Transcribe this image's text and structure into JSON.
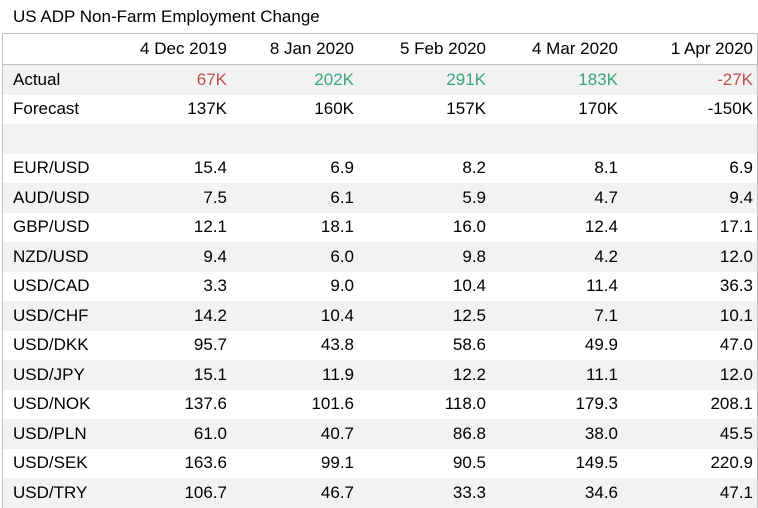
{
  "title": "US ADP Non-Farm Employment Change",
  "columns": [
    "4 Dec 2019",
    "8 Jan 2020",
    "5 Feb 2020",
    "4 Mar 2020",
    "1 Apr 2020"
  ],
  "actual": {
    "label": "Actual",
    "values": [
      "67K",
      "202K",
      "291K",
      "183K",
      "-27K"
    ],
    "status": [
      "negative",
      "positive",
      "positive",
      "positive",
      "negative"
    ]
  },
  "forecast": {
    "label": "Forecast",
    "values": [
      "137K",
      "160K",
      "157K",
      "170K",
      "-150K"
    ]
  },
  "pairs": [
    {
      "label": "EUR/USD",
      "values": [
        "15.4",
        "6.9",
        "8.2",
        "8.1",
        "6.9"
      ]
    },
    {
      "label": "AUD/USD",
      "values": [
        "7.5",
        "6.1",
        "5.9",
        "4.7",
        "9.4"
      ]
    },
    {
      "label": "GBP/USD",
      "values": [
        "12.1",
        "18.1",
        "16.0",
        "12.4",
        "17.1"
      ]
    },
    {
      "label": "NZD/USD",
      "values": [
        "9.4",
        "6.0",
        "9.8",
        "4.2",
        "12.0"
      ]
    },
    {
      "label": "USD/CAD",
      "values": [
        "3.3",
        "9.0",
        "10.4",
        "11.4",
        "36.3"
      ]
    },
    {
      "label": "USD/CHF",
      "values": [
        "14.2",
        "10.4",
        "12.5",
        "7.1",
        "10.1"
      ]
    },
    {
      "label": "USD/DKK",
      "values": [
        "95.7",
        "43.8",
        "58.6",
        "49.9",
        "47.0"
      ]
    },
    {
      "label": "USD/JPY",
      "values": [
        "15.1",
        "11.9",
        "12.2",
        "11.1",
        "12.0"
      ]
    },
    {
      "label": "USD/NOK",
      "values": [
        "137.6",
        "101.6",
        "118.0",
        "179.3",
        "208.1"
      ]
    },
    {
      "label": "USD/PLN",
      "values": [
        "61.0",
        "40.7",
        "86.8",
        "38.0",
        "45.5"
      ]
    },
    {
      "label": "USD/SEK",
      "values": [
        "163.6",
        "99.1",
        "90.5",
        "149.5",
        "220.9"
      ]
    },
    {
      "label": "USD/TRY",
      "values": [
        "106.7",
        "46.7",
        "33.3",
        "34.6",
        "47.1"
      ]
    }
  ],
  "colors": {
    "negative": "#c0504d",
    "positive": "#3aa678",
    "stripe": "#f2f2f2",
    "border": "#bfbfbf"
  }
}
